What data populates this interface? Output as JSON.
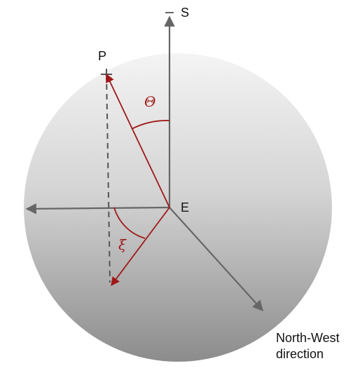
{
  "labels": {
    "s": "S",
    "p": "P",
    "e": "E",
    "theta": "Θ",
    "xi": "ξ",
    "direction_line1": "North-West",
    "direction_line2": "direction"
  },
  "colors": {
    "sphere_light": "#f2f2f2",
    "sphere_dark": "#8e8e8e",
    "axis": "#666666",
    "accent": "#a01818",
    "text": "#111111"
  }
}
